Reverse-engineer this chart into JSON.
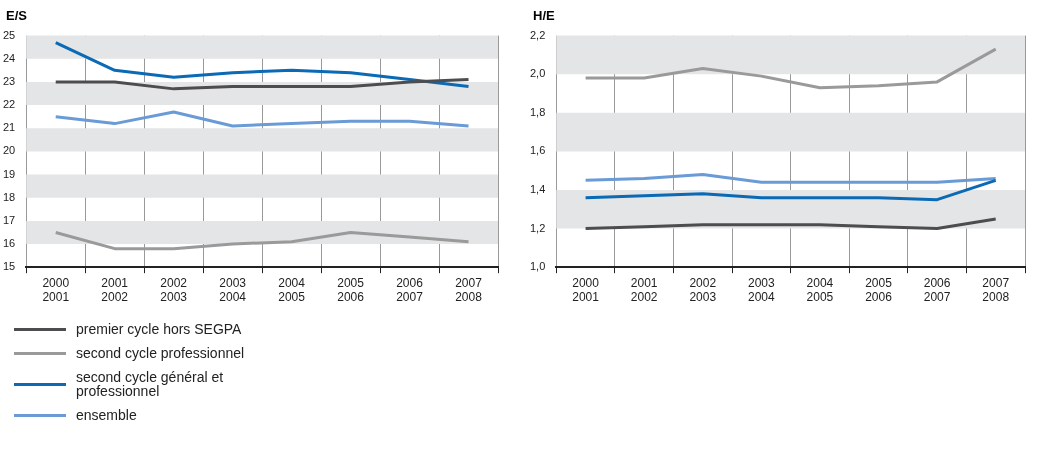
{
  "chart_data": [
    {
      "type": "line",
      "ylabel": "E/S",
      "categories": [
        "2000 2001",
        "2001 2002",
        "2002 2003",
        "2003 2004",
        "2004 2005",
        "2005 2006",
        "2006 2007",
        "2007 2008"
      ],
      "ylim": [
        15,
        25
      ],
      "yticks": [
        15,
        16,
        17,
        18,
        19,
        20,
        21,
        22,
        23,
        24,
        25
      ],
      "grid": true,
      "legend": "bottom",
      "marker": "none",
      "series": [
        {
          "name": "premier cycle hors SEGPA",
          "color": "#4d4d4f",
          "values": [
            23.0,
            23.0,
            22.7,
            22.8,
            22.8,
            22.8,
            23.0,
            23.1
          ]
        },
        {
          "name": "second cycle professionnel",
          "color": "#9a9a9a",
          "values": [
            16.5,
            15.8,
            15.8,
            16.0,
            16.1,
            16.5,
            16.3,
            16.1
          ]
        },
        {
          "name": "second cycle général et professionnel",
          "color": "#0a6ab5",
          "values": [
            24.7,
            23.5,
            23.2,
            23.4,
            23.5,
            23.4,
            23.1,
            22.8
          ]
        },
        {
          "name": "ensemble",
          "color": "#6a9bd6",
          "values": [
            21.5,
            21.2,
            21.7,
            21.1,
            21.2,
            21.3,
            21.3,
            21.1
          ]
        }
      ]
    },
    {
      "type": "line",
      "ylabel": "H/E",
      "categories": [
        "2000 2001",
        "2001 2002",
        "2002 2003",
        "2003 2004",
        "2004 2005",
        "2005 2006",
        "2006 2007",
        "2007 2008"
      ],
      "ylim": [
        1.0,
        2.2
      ],
      "yticks": [
        {
          "value": 1.0,
          "label": "1,0"
        },
        {
          "value": 1.2,
          "label": "1,2"
        },
        {
          "value": 1.4,
          "label": "1,4"
        },
        {
          "value": 1.6,
          "label": "1,6"
        },
        {
          "value": 1.8,
          "label": "1,8"
        },
        {
          "value": 2.0,
          "label": "2,0"
        },
        {
          "value": 2.2,
          "label": "2,2"
        }
      ],
      "grid": true,
      "marker": "none",
      "series": [
        {
          "color": "#4d4d4f",
          "values": [
            1.2,
            1.21,
            1.22,
            1.22,
            1.22,
            1.21,
            1.2,
            1.25
          ]
        },
        {
          "color": "#9a9a9a",
          "values": [
            1.98,
            1.98,
            2.03,
            1.99,
            1.93,
            1.94,
            1.96,
            2.13
          ]
        },
        {
          "color": "#0a6ab5",
          "values": [
            1.36,
            1.37,
            1.38,
            1.36,
            1.36,
            1.36,
            1.35,
            1.45
          ]
        },
        {
          "color": "#6a9bd6",
          "values": [
            1.45,
            1.46,
            1.48,
            1.44,
            1.44,
            1.44,
            1.44,
            1.46
          ]
        }
      ]
    }
  ]
}
